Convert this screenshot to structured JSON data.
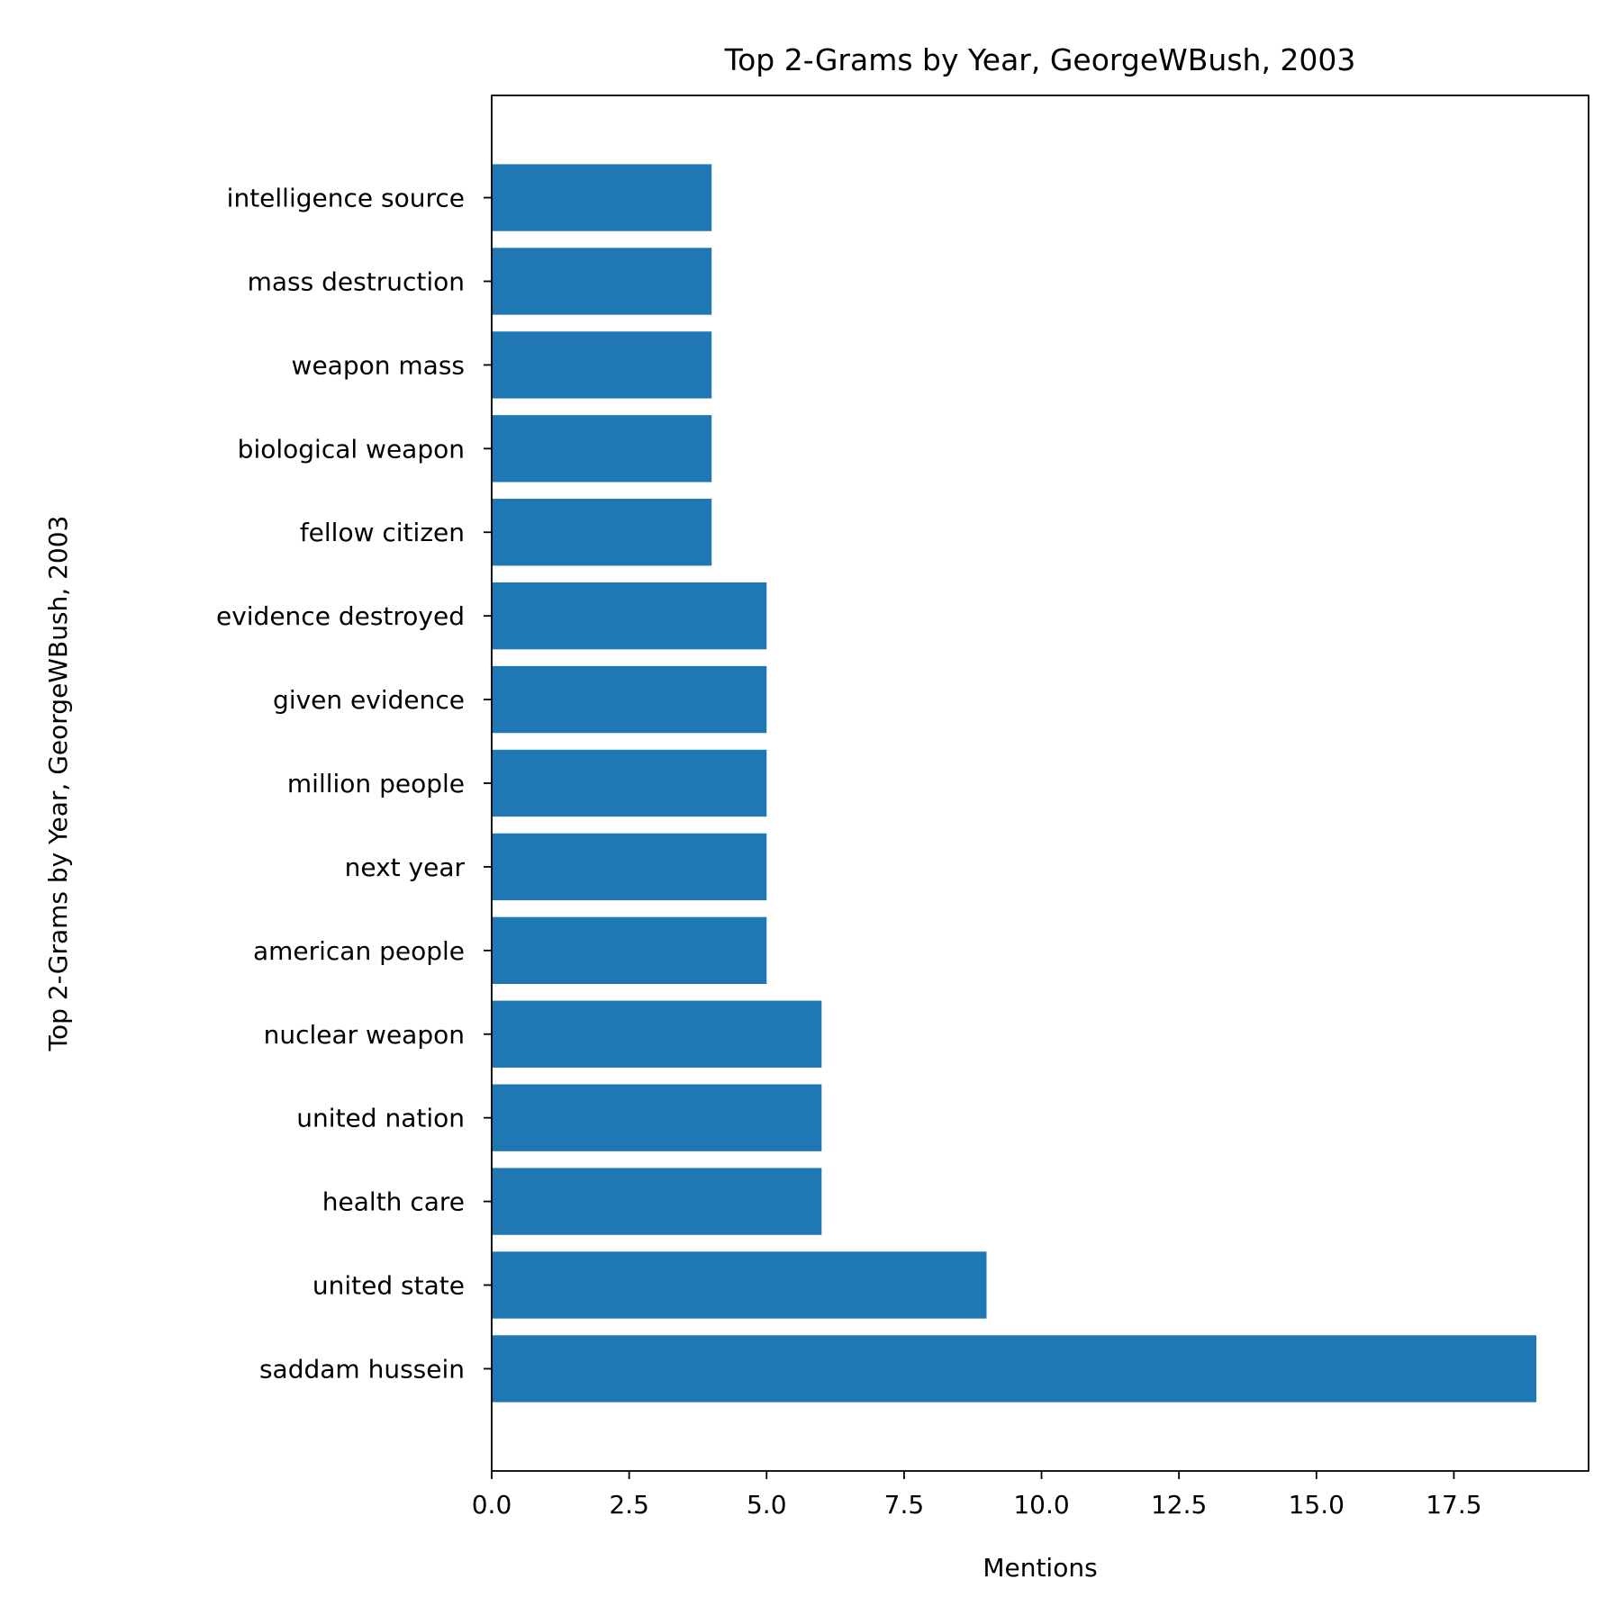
{
  "chart_data": {
    "type": "bar",
    "orientation": "horizontal",
    "title": "Top 2-Grams by Year, GeorgeWBush, 2003",
    "xlabel": "Mentions",
    "ylabel": "Top 2-Grams by Year, GeorgeWBush, 2003",
    "categories": [
      "saddam hussein",
      "united state",
      "health care",
      "united nation",
      "nuclear weapon",
      "american people",
      "next year",
      "million people",
      "given evidence",
      "evidence destroyed",
      "fellow citizen",
      "biological weapon",
      "weapon mass",
      "mass destruction",
      "intelligence source"
    ],
    "values": [
      19,
      9,
      6,
      6,
      6,
      5,
      5,
      5,
      5,
      5,
      4,
      4,
      4,
      4,
      4
    ],
    "xlim": [
      0,
      19.95
    ],
    "xticks": [
      0.0,
      2.5,
      5.0,
      7.5,
      10.0,
      12.5,
      15.0,
      17.5
    ],
    "xtick_labels": [
      "0.0",
      "2.5",
      "5.0",
      "7.5",
      "10.0",
      "12.5",
      "15.0",
      "17.5"
    ],
    "grid": false,
    "legend": "none",
    "bar_color": "#1f77b4"
  }
}
